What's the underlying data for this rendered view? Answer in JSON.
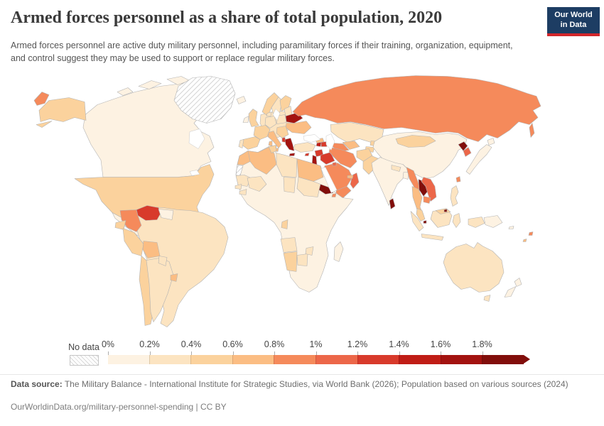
{
  "header": {
    "title": "Armed forces personnel as a share of total population, 2020",
    "subtitle": "Armed forces personnel are active duty military personnel, including paramilitary forces if their training, organization, equipment, and control suggest they may be used to support or replace regular military forces.",
    "logo": {
      "line1": "Our World",
      "line2": "in Data",
      "bg_color": "#1d3d63",
      "stripe_color": "#d2262b"
    }
  },
  "legend": {
    "no_data_label": "No data"
  },
  "footer": {
    "source_label": "Data source:",
    "source_rest": " The Military Balance - International Institute for Strategic Studies, via World Bank (2026); Population based on various sources (2024)",
    "cc_line": "OurWorldinData.org/military-personnel-spending | CC BY"
  },
  "chart_data": {
    "type": "choropleth",
    "title": "Armed forces personnel as a share of total population, 2020",
    "unit": "share of total population (%)",
    "legend_position": "bottom",
    "tick_labels": [
      "0%",
      "0.2%",
      "0.4%",
      "0.6%",
      "0.8%",
      "1%",
      "1.2%",
      "1.4%",
      "1.6%",
      "1.8%"
    ],
    "bin_ranges": [
      "0-0.2%",
      "0.2-0.4%",
      "0.4-0.6%",
      "0.6-0.8%",
      "0.8-1%",
      "1-1.2%",
      "1.2-1.4%",
      "1.4-1.6%",
      "1.6-1.8%",
      "1.8%+"
    ],
    "colors": [
      "#fdf2e2",
      "#fce4c1",
      "#fbd29d",
      "#fbbd83",
      "#f58a5b",
      "#ec6749",
      "#d83a2b",
      "#c01d16",
      "#a31310",
      "#810e0b"
    ],
    "no_data_color": "hatch",
    "country_bins": {
      "canada": 0,
      "greenland": "nd",
      "united-states": 2,
      "mexico": 0,
      "central-america": 1,
      "cuba": 4,
      "hispaniola": 5,
      "jamaica": 3,
      "iceland": 0,
      "venezuela": 6,
      "colombia": 4,
      "guyana-suriname": 0,
      "ecuador": 2,
      "peru": 2,
      "bolivia": 3,
      "chile": 2,
      "argentina": 1,
      "uruguay": 3,
      "paraguay": 1,
      "brazil": 1,
      "central-europe": 1,
      "norway": 2,
      "sweden": 1,
      "finland": 2,
      "denmark": 1,
      "baltic-states": 1,
      "belarus": 8,
      "ukraine": 3,
      "poland": 1,
      "germany": 1,
      "france": 2,
      "spain": 2,
      "portugal": 1,
      "united-kingdom": 2,
      "ireland": 0,
      "italy": 3,
      "balkans": 2,
      "albania": 6,
      "greece": 8,
      "turkey": 1,
      "cyprus": 6,
      "russia": 4,
      "kazakhstan": 1,
      "uzbekistan": 3,
      "turkmenistan": 4,
      "kyrgyzstan": 2,
      "tajikistan": 2,
      "georgia": 3,
      "armenia": 7,
      "azerbaijan": 6,
      "syria": 6,
      "iraq": 6,
      "israel-jordan": 8,
      "saudi-arabia": 4,
      "yemen": 4,
      "oman": 5,
      "kuwait": 5,
      "united-arab-emirates": 3,
      "iran": 4,
      "afghanistan": 2,
      "pakistan": 2,
      "africa": 0,
      "morocco": 3,
      "western-sahara": "nd",
      "algeria": 3,
      "tunisia": 2,
      "libya": 1,
      "egypt": 3,
      "mauritania": 1,
      "senegal": 1,
      "mali": 1,
      "guinea": 1,
      "chad": 1,
      "sudan": 1,
      "eritrea": 9,
      "djibouti": 4,
      "republic-of-congo": 2,
      "angola": 1,
      "namibia": 2,
      "botswana": 1,
      "zimbabwe": 1,
      "madagascar": 0,
      "india": 0,
      "nepal": 1,
      "bangladesh": 0,
      "sri-lanka": 9,
      "china": 0,
      "mongolia": 2,
      "myanmar": 4,
      "thailand": 3,
      "laos": 9,
      "vietnam": 5,
      "cambodia": 4,
      "malaysia": 2,
      "singapore": 9,
      "brunei": 9,
      "indonesia": 1,
      "indonesia-papua": 1,
      "philippines": 1,
      "taiwan": 4,
      "papua-new-guinea": 0,
      "japan": 0,
      "north-korea": 9,
      "south-korea": 5,
      "australia": 1,
      "new-zealand": 0,
      "fiji": 4,
      "vanuatu": 3,
      "solomon-islands": 0
    }
  }
}
